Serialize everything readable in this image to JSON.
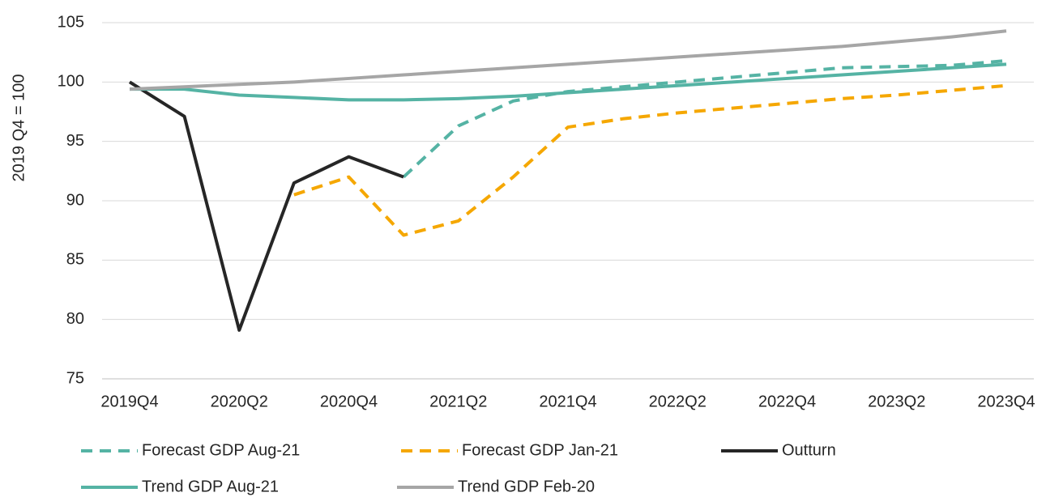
{
  "chart_data": {
    "type": "line",
    "y_label": "2019 Q4 = 100",
    "categories": [
      "2019Q4",
      null,
      "2020Q2",
      null,
      "2020Q4",
      null,
      "2021Q2",
      null,
      "2021Q4",
      null,
      "2022Q2",
      null,
      "2022Q4",
      null,
      "2023Q2",
      null,
      "2023Q4"
    ],
    "series": [
      {
        "name": "Forecast GDP Aug-21",
        "color": "#55b3a4",
        "dashed": true,
        "values": [
          null,
          null,
          null,
          null,
          null,
          92.0,
          96.3,
          98.4,
          99.2,
          99.6,
          100.0,
          100.4,
          100.8,
          101.2,
          101.3,
          101.4,
          101.8
        ]
      },
      {
        "name": "Forecast GDP Jan-21",
        "color": "#f5a700",
        "dashed": true,
        "values": [
          null,
          null,
          null,
          90.5,
          92.0,
          87.1,
          88.3,
          92.0,
          96.2,
          96.9,
          97.4,
          97.8,
          98.2,
          98.6,
          98.9,
          99.3,
          99.7
        ]
      },
      {
        "name": "Outturn",
        "color": "#262626",
        "dashed": false,
        "values": [
          100.0,
          97.1,
          79.1,
          91.5,
          93.7,
          92.0,
          null,
          null,
          null,
          null,
          null,
          null,
          null,
          null,
          null,
          null,
          null
        ]
      },
      {
        "name": "Trend GDP Aug-21",
        "color": "#55b3a4",
        "dashed": false,
        "values": [
          99.4,
          99.4,
          98.9,
          98.7,
          98.5,
          98.5,
          98.6,
          98.8,
          99.1,
          99.4,
          99.7,
          100.0,
          100.3,
          100.6,
          100.9,
          101.2,
          101.5
        ]
      },
      {
        "name": "Trend GDP Feb-20",
        "color": "#a6a6a6",
        "dashed": false,
        "values": [
          99.4,
          99.6,
          99.8,
          100.0,
          100.3,
          100.6,
          100.9,
          101.2,
          101.5,
          101.8,
          102.1,
          102.4,
          102.7,
          103.0,
          103.4,
          103.8,
          104.3
        ]
      }
    ],
    "ylim": [
      75,
      105
    ],
    "yticks": [
      75,
      80,
      85,
      90,
      95,
      100,
      105
    ],
    "grid": true
  }
}
